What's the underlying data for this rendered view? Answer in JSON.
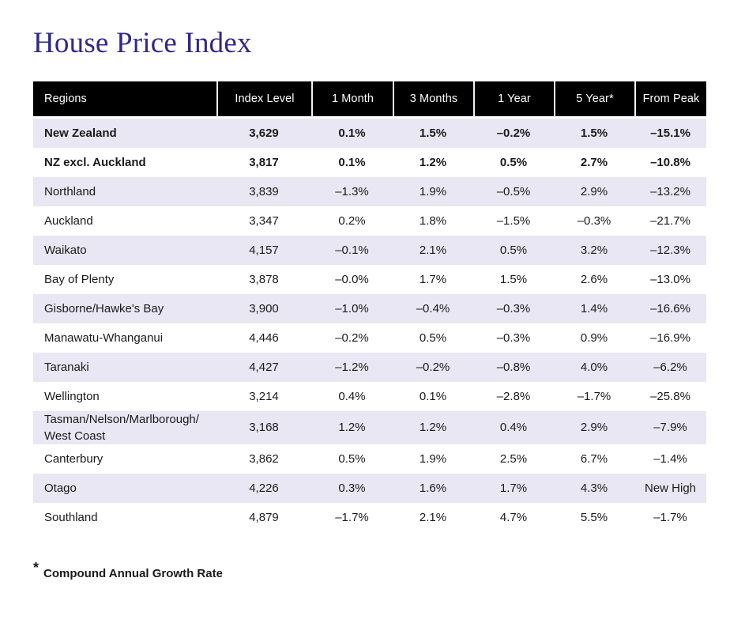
{
  "chart_data": {
    "type": "table",
    "title": "House Price Index",
    "columns": [
      "Regions",
      "Index Level",
      "1 Month",
      "3 Months",
      "1 Year",
      "5 Year*",
      "From Peak"
    ],
    "rows": [
      {
        "region": "New Zealand",
        "bold": true,
        "shaded": true,
        "values": [
          "3,629",
          "0.1%",
          "1.5%",
          "–0.2%",
          "1.5%",
          "–15.1%"
        ]
      },
      {
        "region": "NZ excl. Auckland",
        "bold": true,
        "shaded": false,
        "values": [
          "3,817",
          "0.1%",
          "1.2%",
          "0.5%",
          "2.7%",
          "–10.8%"
        ]
      },
      {
        "region": "Northland",
        "bold": false,
        "shaded": true,
        "values": [
          "3,839",
          "–1.3%",
          "1.9%",
          "–0.5%",
          "2.9%",
          "–13.2%"
        ]
      },
      {
        "region": "Auckland",
        "bold": false,
        "shaded": false,
        "values": [
          "3,347",
          "0.2%",
          "1.8%",
          "–1.5%",
          "–0.3%",
          "–21.7%"
        ]
      },
      {
        "region": "Waikato",
        "bold": false,
        "shaded": true,
        "values": [
          "4,157",
          "–0.1%",
          "2.1%",
          "0.5%",
          "3.2%",
          "–12.3%"
        ]
      },
      {
        "region": "Bay of Plenty",
        "bold": false,
        "shaded": false,
        "values": [
          "3,878",
          "–0.0%",
          "1.7%",
          "1.5%",
          "2.6%",
          "–13.0%"
        ]
      },
      {
        "region": "Gisborne/Hawke's Bay",
        "bold": false,
        "shaded": true,
        "values": [
          "3,900",
          "–1.0%",
          "–0.4%",
          "–0.3%",
          "1.4%",
          "–16.6%"
        ]
      },
      {
        "region": "Manawatu-Whanganui",
        "bold": false,
        "shaded": false,
        "values": [
          "4,446",
          "–0.2%",
          "0.5%",
          "–0.3%",
          "0.9%",
          "–16.9%"
        ]
      },
      {
        "region": "Taranaki",
        "bold": false,
        "shaded": true,
        "values": [
          "4,427",
          "–1.2%",
          "–0.2%",
          "–0.8%",
          "4.0%",
          "–6.2%"
        ]
      },
      {
        "region": "Wellington",
        "bold": false,
        "shaded": false,
        "values": [
          "3,214",
          "0.4%",
          "0.1%",
          "–2.8%",
          "–1.7%",
          "–25.8%"
        ]
      },
      {
        "region": "Tasman/Nelson/Marlborough/",
        "region_line2": "West Coast",
        "bold": false,
        "shaded": true,
        "values": [
          "3,168",
          "1.2%",
          "1.2%",
          "0.4%",
          "2.9%",
          "–7.9%"
        ]
      },
      {
        "region": "Canterbury",
        "bold": false,
        "shaded": false,
        "values": [
          "3,862",
          "0.5%",
          "1.9%",
          "2.5%",
          "6.7%",
          "–1.4%"
        ]
      },
      {
        "region": "Otago",
        "bold": false,
        "shaded": true,
        "values": [
          "4,226",
          "0.3%",
          "1.6%",
          "1.7%",
          "4.3%",
          "New High"
        ]
      },
      {
        "region": "Southland",
        "bold": false,
        "shaded": false,
        "values": [
          "4,879",
          "–1.7%",
          "2.1%",
          "4.7%",
          "5.5%",
          "–1.7%"
        ]
      }
    ],
    "footnote": {
      "symbol": "*",
      "text": "Compound Annual Growth Rate"
    },
    "layout_hints": {
      "header_style": "black-bar",
      "row_striping": "alternating starting shaded",
      "grid": "none"
    }
  },
  "colors": {
    "title": "#33278a",
    "header_bg": "#000000",
    "header_text": "#ffffff",
    "row_shaded": "#e9e7f3",
    "row_plain": "#ffffff",
    "body_text": "#1a1a1a"
  }
}
